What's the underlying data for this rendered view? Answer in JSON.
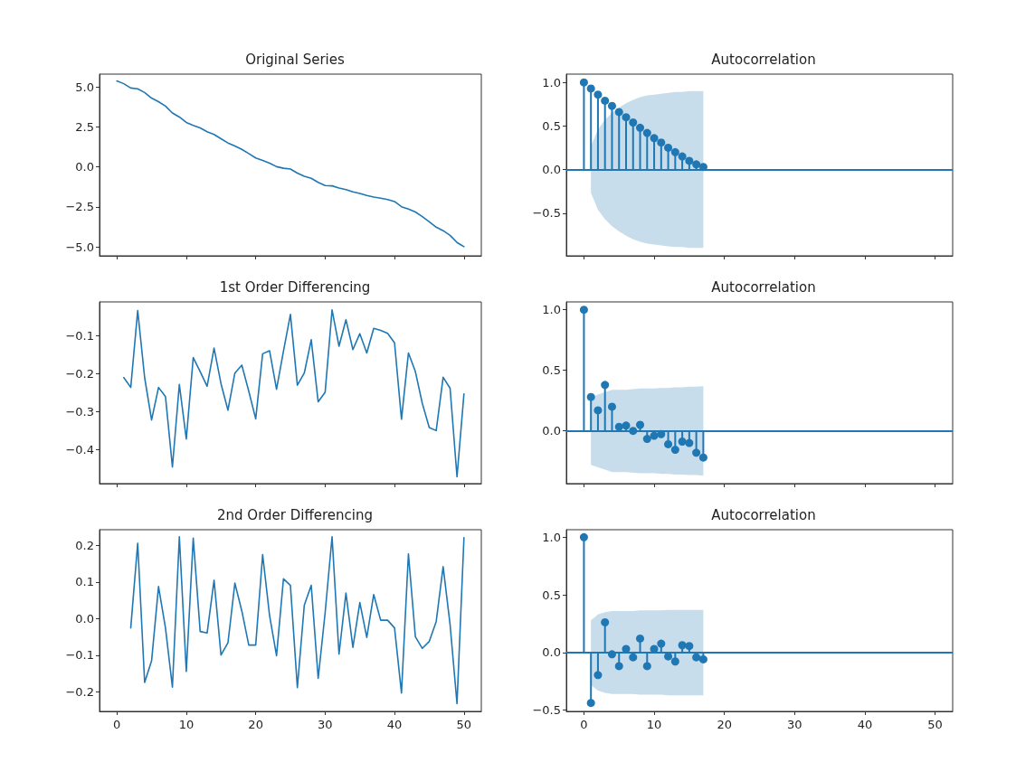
{
  "chart_data": [
    {
      "type": "line",
      "title": "Original Series",
      "color": "#1f77b4",
      "marker": "none",
      "tick_labels": "y",
      "xlim": [
        -2.5,
        52.5
      ],
      "xticks": [
        0,
        10,
        20,
        30,
        40,
        50
      ],
      "ylim": [
        -5.55,
        5.8
      ],
      "yticks": [
        {
          "value": -5,
          "label": "−5.0"
        },
        {
          "value": -2.5,
          "label": "−2.5"
        },
        {
          "value": 0,
          "label": "0.0"
        },
        {
          "value": 2.5,
          "label": "2.5"
        },
        {
          "value": 5,
          "label": "5.0"
        }
      ],
      "x": [
        0,
        1,
        2,
        3,
        4,
        5,
        6,
        7,
        8,
        9,
        10,
        11,
        12,
        13,
        14,
        15,
        16,
        17,
        18,
        19,
        20,
        21,
        22,
        23,
        24,
        25,
        26,
        27,
        28,
        29,
        30,
        31,
        32,
        33,
        34,
        35,
        36,
        37,
        38,
        39,
        40,
        41,
        42,
        43,
        44,
        45,
        46,
        47,
        48,
        49,
        50
      ],
      "values": [
        5.37,
        5.2,
        4.93,
        4.88,
        4.65,
        4.3,
        4.08,
        3.8,
        3.37,
        3.12,
        2.78,
        2.6,
        2.44,
        2.2,
        2.03,
        1.76,
        1.5,
        1.31,
        1.1,
        0.84,
        0.56,
        0.41,
        0.24,
        0.02,
        -0.08,
        -0.13,
        -0.38,
        -0.58,
        -0.71,
        -0.96,
        -1.16,
        -1.18,
        -1.31,
        -1.41,
        -1.56,
        -1.65,
        -1.78,
        -1.88,
        -1.95,
        -2.04,
        -2.16,
        -2.48,
        -2.63,
        -2.81,
        -3.1,
        -3.42,
        -3.76,
        -3.98,
        -4.27,
        -4.72,
        -4.98
      ]
    },
    {
      "type": "lollipop",
      "title": "Autocorrelation",
      "marker": "circle",
      "tick_labels": "y",
      "xlim": [
        -2.5,
        52.5
      ],
      "xticks": [
        0,
        10,
        20,
        30,
        40,
        50
      ],
      "ylim": [
        -0.99,
        1.095
      ],
      "yticks": [
        {
          "value": -0.5,
          "label": "−0.5"
        },
        {
          "value": 0,
          "label": "0.0"
        },
        {
          "value": 0.5,
          "label": "0.5"
        },
        {
          "value": 1,
          "label": "1.0"
        }
      ],
      "ref_lines": [
        {
          "axis": "y",
          "value": 0
        }
      ],
      "x": [
        0,
        1,
        2,
        3,
        4,
        5,
        6,
        7,
        8,
        9,
        10,
        11,
        12,
        13,
        14,
        15,
        16,
        17
      ],
      "series": [
        {
          "color": "#1f77b4",
          "values": [
            1.0,
            0.93,
            0.86,
            0.79,
            0.73,
            0.66,
            0.6,
            0.54,
            0.48,
            0.42,
            0.36,
            0.31,
            0.25,
            0.2,
            0.15,
            0.1,
            0.06,
            0.03
          ],
          "upper": [
            null,
            0.27,
            0.46,
            0.57,
            0.65,
            0.71,
            0.76,
            0.8,
            0.83,
            0.85,
            0.86,
            0.87,
            0.88,
            0.89,
            0.89,
            0.9,
            0.9,
            0.9
          ],
          "lower": [
            null,
            -0.27,
            -0.46,
            -0.57,
            -0.65,
            -0.71,
            -0.76,
            -0.8,
            -0.83,
            -0.85,
            -0.86,
            -0.87,
            -0.88,
            -0.89,
            -0.89,
            -0.9,
            -0.9,
            -0.9
          ]
        }
      ]
    },
    {
      "type": "line",
      "title": "1st Order Differencing",
      "color": "#1f77b4",
      "marker": "none",
      "tick_labels": "y",
      "xlim": [
        -2.5,
        52.5
      ],
      "xticks": [
        0,
        10,
        20,
        30,
        40,
        50
      ],
      "ylim": [
        -0.49,
        -0.01
      ],
      "yticks": [
        {
          "value": -0.4,
          "label": "−0.4"
        },
        {
          "value": -0.3,
          "label": "−0.3"
        },
        {
          "value": -0.2,
          "label": "−0.2"
        },
        {
          "value": -0.1,
          "label": "−0.1"
        }
      ],
      "x": [
        1,
        2,
        3,
        4,
        5,
        6,
        7,
        8,
        9,
        10,
        11,
        12,
        13,
        14,
        15,
        16,
        17,
        18,
        19,
        20,
        21,
        22,
        23,
        24,
        25,
        26,
        27,
        28,
        29,
        30,
        31,
        32,
        33,
        34,
        35,
        36,
        37,
        38,
        39,
        40,
        41,
        42,
        43,
        44,
        45,
        46,
        47,
        48,
        49,
        50
      ],
      "values": [
        -0.21,
        -0.236,
        -0.033,
        -0.21,
        -0.322,
        -0.236,
        -0.26,
        -0.446,
        -0.228,
        -0.372,
        -0.157,
        -0.194,
        -0.233,
        -0.132,
        -0.226,
        -0.296,
        -0.198,
        -0.177,
        -0.246,
        -0.319,
        -0.147,
        -0.139,
        -0.241,
        -0.14,
        -0.043,
        -0.23,
        -0.198,
        -0.11,
        -0.274,
        -0.249,
        -0.031,
        -0.127,
        -0.057,
        -0.136,
        -0.094,
        -0.145,
        -0.08,
        -0.085,
        -0.093,
        -0.118,
        -0.32,
        -0.145,
        -0.194,
        -0.278,
        -0.342,
        -0.35,
        -0.209,
        -0.238,
        -0.472,
        -0.253
      ]
    },
    {
      "type": "lollipop",
      "title": "Autocorrelation",
      "marker": "circle",
      "tick_labels": "y",
      "xlim": [
        -2.5,
        52.5
      ],
      "xticks": [
        0,
        10,
        20,
        30,
        40,
        50
      ],
      "ylim": [
        -0.435,
        1.065
      ],
      "yticks": [
        {
          "value": 0,
          "label": "0.0"
        },
        {
          "value": 0.5,
          "label": "0.5"
        },
        {
          "value": 1,
          "label": "1.0"
        }
      ],
      "ref_lines": [
        {
          "axis": "y",
          "value": 0
        }
      ],
      "x": [
        0,
        1,
        2,
        3,
        4,
        5,
        6,
        7,
        8,
        9,
        10,
        11,
        12,
        13,
        14,
        15,
        16,
        17
      ],
      "series": [
        {
          "color": "#1f77b4",
          "values": [
            1.0,
            0.28,
            0.17,
            0.38,
            0.2,
            0.034,
            0.044,
            0.0,
            0.05,
            -0.066,
            -0.04,
            -0.027,
            -0.11,
            -0.156,
            -0.088,
            -0.1,
            -0.18,
            -0.22
          ],
          "upper": [
            null,
            0.28,
            0.3,
            0.32,
            0.34,
            0.34,
            0.34,
            0.345,
            0.35,
            0.35,
            0.35,
            0.355,
            0.355,
            0.36,
            0.36,
            0.365,
            0.365,
            0.37
          ],
          "lower": [
            null,
            -0.28,
            -0.3,
            -0.32,
            -0.34,
            -0.34,
            -0.34,
            -0.345,
            -0.35,
            -0.35,
            -0.35,
            -0.355,
            -0.355,
            -0.36,
            -0.36,
            -0.365,
            -0.365,
            -0.37
          ]
        }
      ]
    },
    {
      "type": "line",
      "title": "2nd Order Differencing",
      "color": "#1f77b4",
      "marker": "none",
      "xlim": [
        -2.5,
        52.5
      ],
      "xticks": [
        0,
        10,
        20,
        30,
        40,
        50
      ],
      "ylim": [
        -0.253,
        0.243
      ],
      "yticks": [
        {
          "value": -0.2,
          "label": "−0.2"
        },
        {
          "value": -0.1,
          "label": "−0.1"
        },
        {
          "value": 0,
          "label": "0.0"
        },
        {
          "value": 0.1,
          "label": "0.1"
        },
        {
          "value": 0.2,
          "label": "0.2"
        }
      ],
      "x": [
        2,
        3,
        4,
        5,
        6,
        7,
        8,
        9,
        10,
        11,
        12,
        13,
        14,
        15,
        16,
        17,
        18,
        19,
        20,
        21,
        22,
        23,
        24,
        25,
        26,
        27,
        28,
        29,
        30,
        31,
        32,
        33,
        34,
        35,
        36,
        37,
        38,
        39,
        40,
        41,
        42,
        43,
        44,
        45,
        46,
        47,
        48,
        49,
        50
      ],
      "values": [
        -0.025,
        0.206,
        -0.174,
        -0.115,
        0.088,
        -0.025,
        -0.187,
        0.224,
        -0.144,
        0.22,
        -0.035,
        -0.039,
        0.105,
        -0.099,
        -0.066,
        0.097,
        0.021,
        -0.072,
        -0.072,
        0.175,
        0.008,
        -0.101,
        0.109,
        0.091,
        -0.188,
        0.037,
        0.091,
        -0.163,
        0.016,
        0.224,
        -0.097,
        0.07,
        -0.078,
        0.044,
        -0.051,
        0.066,
        -0.004,
        -0.004,
        -0.025,
        -0.203,
        0.177,
        -0.049,
        -0.081,
        -0.062,
        -0.008,
        0.142,
        -0.016,
        -0.232,
        0.221
      ]
    },
    {
      "type": "lollipop",
      "title": "Autocorrelation",
      "marker": "circle",
      "xlim": [
        -2.5,
        52.5
      ],
      "xticks": [
        0,
        10,
        20,
        30,
        40,
        50
      ],
      "ylim": [
        -0.51,
        1.065
      ],
      "yticks": [
        {
          "value": -0.5,
          "label": "−0.5"
        },
        {
          "value": 0,
          "label": "0.0"
        },
        {
          "value": 0.5,
          "label": "0.5"
        },
        {
          "value": 1,
          "label": "1.0"
        }
      ],
      "ref_lines": [
        {
          "axis": "y",
          "value": 0
        }
      ],
      "x": [
        0,
        1,
        2,
        3,
        4,
        5,
        6,
        7,
        8,
        9,
        10,
        11,
        12,
        13,
        14,
        15,
        16,
        17
      ],
      "series": [
        {
          "color": "#1f77b4",
          "values": [
            1.0,
            -0.437,
            -0.195,
            0.262,
            -0.015,
            -0.118,
            0.031,
            -0.041,
            0.121,
            -0.118,
            0.031,
            0.077,
            -0.033,
            -0.077,
            0.064,
            0.057,
            -0.041,
            -0.059
          ],
          "upper": [
            null,
            0.28,
            0.33,
            0.35,
            0.36,
            0.36,
            0.36,
            0.36,
            0.365,
            0.365,
            0.365,
            0.365,
            0.37,
            0.37,
            0.37,
            0.37,
            0.37,
            0.37
          ],
          "lower": [
            null,
            -0.28,
            -0.33,
            -0.35,
            -0.36,
            -0.36,
            -0.36,
            -0.36,
            -0.365,
            -0.365,
            -0.365,
            -0.365,
            -0.37,
            -0.37,
            -0.37,
            -0.37,
            -0.37,
            -0.37
          ]
        }
      ]
    }
  ]
}
